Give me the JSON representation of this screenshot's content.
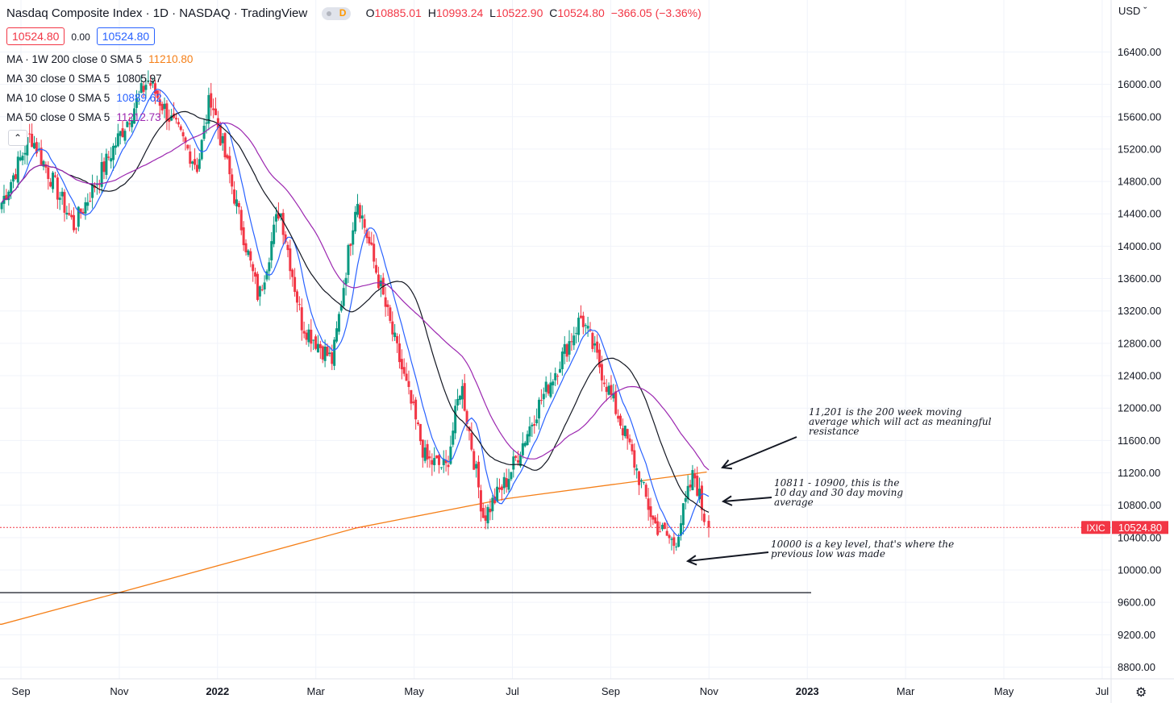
{
  "header": {
    "title": "Nasdaq Composite Index · 1D · NASDAQ · TradingView",
    "interval_badge": "D",
    "open_label": "O",
    "open": "10885.01",
    "high_label": "H",
    "high": "10993.24",
    "low_label": "L",
    "low": "10522.90",
    "close_label": "C",
    "close": "10524.80",
    "change": "−366.05 (−3.36%)"
  },
  "bid_ask": {
    "sell": "10524.80",
    "spread": "0.00",
    "buy": "10524.80"
  },
  "indicators": [
    {
      "label": "MA · 1W 200 close 0 SMA 5",
      "value": "11210.80",
      "color": "#f57f17"
    },
    {
      "label": "MA 30 close 0 SMA 5",
      "value": "10805.97",
      "color": "#131722"
    },
    {
      "label": "MA 10 close 0 SMA 5",
      "value": "10889.62",
      "color": "#2962ff"
    },
    {
      "label": "MA 50 close 0 SMA 5",
      "value": "11212.73",
      "color": "#9c27b0"
    }
  ],
  "currency": "USD",
  "symbol_badge": "IXIC",
  "price_badge": "10524.80",
  "annotations": {
    "resistance": [
      "11,201 is the 200 week moving",
      "average which will act as meaningful",
      "resistance"
    ],
    "moving_avg": [
      "10811 - 10900, this is the",
      "10 day and 30 day moving",
      "average"
    ],
    "key_level": [
      "10000 is a key level, that's where the",
      "previous low was made"
    ]
  },
  "colors": {
    "up": "#089981",
    "down": "#f23645",
    "ma10": "#2962ff",
    "ma30": "#131722",
    "ma50": "#9c27b0",
    "ma200w": "#f57f17"
  },
  "chart_data": {
    "type": "candlestick",
    "title": "Nasdaq Composite Index · 1D · NASDAQ · TradingView",
    "x_ticks": [
      "Sep",
      "Nov",
      "2022",
      "Mar",
      "May",
      "Jul",
      "Sep",
      "Nov",
      "2023",
      "Mar",
      "May",
      "Jul"
    ],
    "y_ticks": [
      "8800.00",
      "9200.00",
      "9600.00",
      "10000.00",
      "10400.00",
      "10800.00",
      "11200.00",
      "11600.00",
      "12000.00",
      "12400.00",
      "12800.00",
      "13200.00",
      "13600.00",
      "14000.00",
      "14400.00",
      "14800.00",
      "15200.00",
      "15600.00",
      "16000.00",
      "16400.00"
    ],
    "ylim": [
      8650,
      16900
    ],
    "last_price": 10524.8,
    "horizontal_line": 9720,
    "key_points": [
      {
        "date": "2021-08-20",
        "close": 14540
      },
      {
        "date": "2021-09-07",
        "close": 15370
      },
      {
        "date": "2021-10-04",
        "close": 14250
      },
      {
        "date": "2021-11-19",
        "close": 16057
      },
      {
        "date": "2021-12-20",
        "close": 14980
      },
      {
        "date": "2021-12-28",
        "close": 15870
      },
      {
        "date": "2022-01-27",
        "close": 13350
      },
      {
        "date": "2022-02-09",
        "close": 14490
      },
      {
        "date": "2022-02-23",
        "close": 13040
      },
      {
        "date": "2022-03-14",
        "close": 12580
      },
      {
        "date": "2022-03-29",
        "close": 14620
      },
      {
        "date": "2022-04-26",
        "close": 12490
      },
      {
        "date": "2022-05-11",
        "close": 11360
      },
      {
        "date": "2022-05-24",
        "close": 11260
      },
      {
        "date": "2022-06-02",
        "close": 12320
      },
      {
        "date": "2022-06-16",
        "close": 10650
      },
      {
        "date": "2022-07-01",
        "close": 11130
      },
      {
        "date": "2022-07-21",
        "close": 12060
      },
      {
        "date": "2022-08-16",
        "close": 13130
      },
      {
        "date": "2022-09-13",
        "close": 11630
      },
      {
        "date": "2022-09-30",
        "close": 10580
      },
      {
        "date": "2022-10-13",
        "close": 10320
      },
      {
        "date": "2022-10-25",
        "close": 11200
      },
      {
        "date": "2022-11-02",
        "close": 10524.8
      }
    ],
    "series": [
      {
        "name": "MA 10 close 0 SMA 5",
        "last": 10889.62
      },
      {
        "name": "MA 30 close 0 SMA 5",
        "last": 10805.97
      },
      {
        "name": "MA 50 close 0 SMA 5",
        "last": 11212.73
      },
      {
        "name": "MA · 1W 200 close 0 SMA 5",
        "last": 11210.8,
        "points": [
          {
            "date": "2021-08-20",
            "value": 9330
          },
          {
            "date": "2021-11-01",
            "value": 9720
          },
          {
            "date": "2022-03-29",
            "value": 10520
          },
          {
            "date": "2022-06-30",
            "value": 10880
          },
          {
            "date": "2022-11-02",
            "value": 11210
          }
        ]
      }
    ],
    "grid": true
  }
}
